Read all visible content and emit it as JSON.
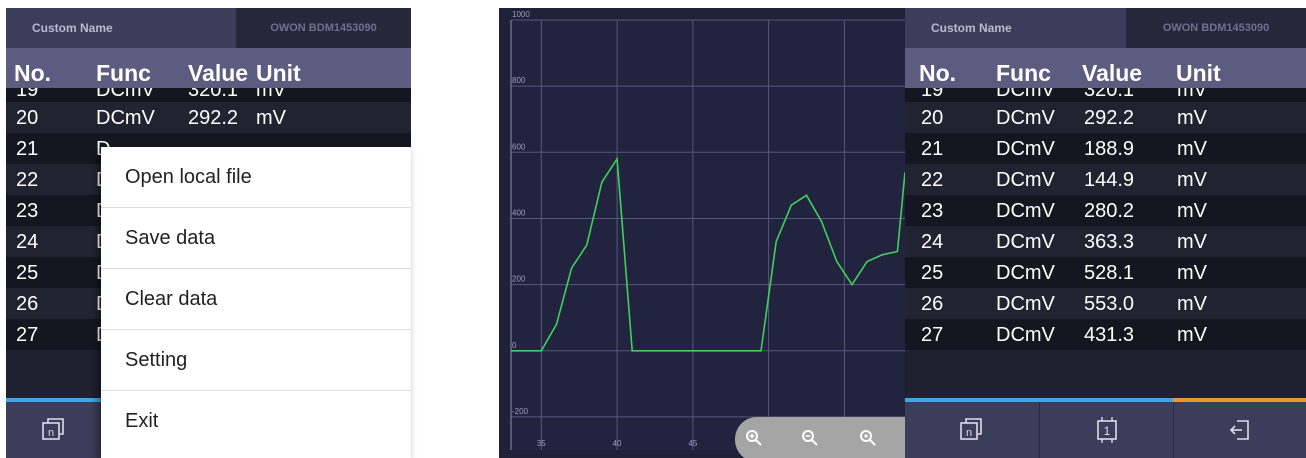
{
  "left_view": {
    "device": {
      "custom_name": "Custom Name",
      "serial": "OWON BDM1453090"
    },
    "columns": {
      "no": "No.",
      "func": "Func",
      "value": "Value",
      "unit": "Unit"
    },
    "partial_row": {
      "no": "19",
      "func": "DCmV",
      "value": "320.1",
      "unit": "mV"
    },
    "rows": [
      {
        "no": "20",
        "func": "DCmV",
        "value": "292.2",
        "unit": "mV"
      },
      {
        "no": "21",
        "func": "D",
        "value": "",
        "unit": ""
      },
      {
        "no": "22",
        "func": "D",
        "value": "",
        "unit": ""
      },
      {
        "no": "23",
        "func": "D",
        "value": "",
        "unit": ""
      },
      {
        "no": "24",
        "func": "D",
        "value": "",
        "unit": ""
      },
      {
        "no": "25",
        "func": "D",
        "value": "",
        "unit": ""
      },
      {
        "no": "26",
        "func": "D",
        "value": "",
        "unit": ""
      },
      {
        "no": "27",
        "func": "D",
        "value": "",
        "unit": ""
      }
    ],
    "menu": [
      "Open local file",
      "Save data",
      "Clear data",
      "Setting",
      "Exit"
    ]
  },
  "right_view": {
    "device": {
      "custom_name": "Custom Name",
      "serial": "OWON BDM1453090"
    },
    "columns": {
      "no": "No.",
      "func": "Func",
      "value": "Value",
      "unit": "Unit"
    },
    "partial_row": {
      "no": "19",
      "func": "DCmV",
      "value": "320.1",
      "unit": "mV"
    },
    "rows": [
      {
        "no": "20",
        "func": "DCmV",
        "value": "292.2",
        "unit": "mV"
      },
      {
        "no": "21",
        "func": "DCmV",
        "value": "188.9",
        "unit": "mV"
      },
      {
        "no": "22",
        "func": "DCmV",
        "value": "144.9",
        "unit": "mV"
      },
      {
        "no": "23",
        "func": "DCmV",
        "value": "280.2",
        "unit": "mV"
      },
      {
        "no": "24",
        "func": "DCmV",
        "value": "363.3",
        "unit": "mV"
      },
      {
        "no": "25",
        "func": "DCmV",
        "value": "528.1",
        "unit": "mV"
      },
      {
        "no": "26",
        "func": "DCmV",
        "value": "553.0",
        "unit": "mV"
      },
      {
        "no": "27",
        "func": "DCmV",
        "value": "431.3",
        "unit": "mV"
      }
    ],
    "toolbar": {
      "button_1_glyph": "n",
      "button_2_glyph": "1"
    }
  },
  "colors": {
    "accent_blue": "#3ea6e6",
    "accent_orange": "#f0932b",
    "series_line": "#3fd05a",
    "header_bg": "#3c3d5a",
    "column_header_bg": "#5b5c80"
  },
  "icons": {
    "left_toolbar": [
      "record-mode-icon"
    ],
    "right_toolbar": [
      "record-mode-icon",
      "single-mode-icon",
      "exit-icon"
    ],
    "zoom_bar": [
      "zoom-in-icon",
      "zoom-out-icon",
      "zoom-reset-icon"
    ]
  },
  "chart_data": {
    "type": "line",
    "xlim": [
      33,
      59
    ],
    "ylim": [
      -300,
      1000
    ],
    "xticks": [
      35,
      40,
      45,
      50,
      55
    ],
    "xtick_labels": [
      "35",
      "40",
      "45",
      "",
      ""
    ],
    "yticks": [
      -200,
      0,
      200,
      400,
      600,
      800,
      1000
    ],
    "ytick_labels": [
      "-200",
      "0",
      "200",
      "400",
      "600",
      "800",
      "1000"
    ],
    "grid": true,
    "line_color": "#3fd05a",
    "x": [
      33,
      35,
      36,
      37,
      38,
      39,
      40,
      41,
      42,
      49.5,
      50.5,
      51.5,
      52.5,
      53.5,
      54.5,
      55.5,
      56.5,
      57.5,
      58.5,
      59
    ],
    "y": [
      0,
      0,
      80,
      250,
      320,
      510,
      580,
      0,
      0,
      0,
      330,
      440,
      470,
      390,
      270,
      200,
      270,
      290,
      300,
      540
    ]
  }
}
